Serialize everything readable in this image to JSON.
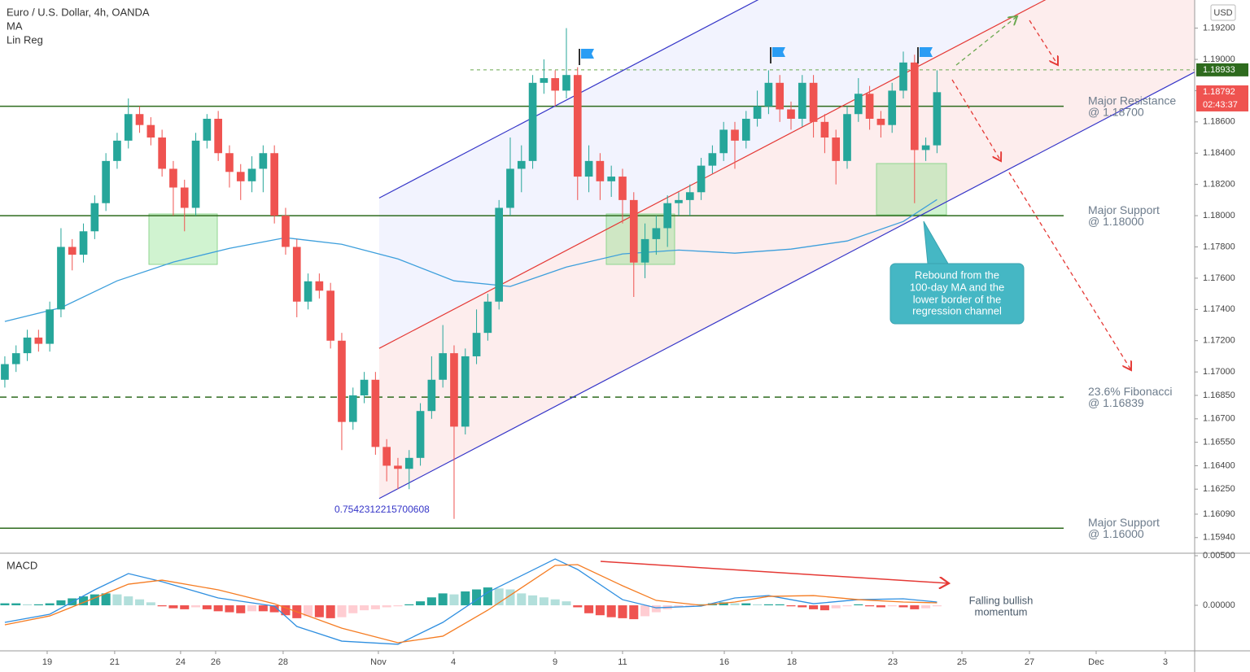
{
  "chart_data": [
    {
      "type": "candlestick",
      "title": "Euro / U.S. Dollar, 4h, OANDA",
      "currency": "USD",
      "up_color": "#26a69a",
      "down_color": "#ef5350",
      "xlim": [
        -0.43,
        105.94
      ],
      "ylim": [
        1.1584,
        1.1938
      ],
      "xticks": [
        {
          "value": 3.77,
          "label": "19"
        },
        {
          "value": 9.78,
          "label": "21"
        },
        {
          "value": 15.65,
          "label": "24"
        },
        {
          "value": 18.77,
          "label": "26"
        },
        {
          "value": 24.78,
          "label": "28"
        },
        {
          "value": 33.26,
          "label": "Nov"
        },
        {
          "value": 39.93,
          "label": "4"
        },
        {
          "value": 48.99,
          "label": "9"
        },
        {
          "value": 55.0,
          "label": "11"
        },
        {
          "value": 64.06,
          "label": "16"
        },
        {
          "value": 70.07,
          "label": "18"
        },
        {
          "value": 79.06,
          "label": "23"
        },
        {
          "value": 85.22,
          "label": "25"
        },
        {
          "value": 91.23,
          "label": "27"
        },
        {
          "value": 97.17,
          "label": "Dec"
        },
        {
          "value": 103.33,
          "label": "3"
        }
      ],
      "yticks": [
        {
          "value": 1.192,
          "label": "1.19200"
        },
        {
          "value": 1.19,
          "label": "1.19000"
        },
        {
          "value": 1.188,
          "label": "1.18800"
        },
        {
          "value": 1.186,
          "label": "1.18600"
        },
        {
          "value": 1.184,
          "label": "1.18400"
        },
        {
          "value": 1.182,
          "label": "1.18200"
        },
        {
          "value": 1.18,
          "label": "1.18000"
        },
        {
          "value": 1.178,
          "label": "1.17800"
        },
        {
          "value": 1.176,
          "label": "1.17600"
        },
        {
          "value": 1.174,
          "label": "1.17400"
        },
        {
          "value": 1.172,
          "label": "1.17200"
        },
        {
          "value": 1.17,
          "label": "1.17000"
        },
        {
          "value": 1.1685,
          "label": "1.16850"
        },
        {
          "value": 1.167,
          "label": "1.16700"
        },
        {
          "value": 1.1655,
          "label": "1.16550"
        },
        {
          "value": 1.164,
          "label": "1.16400"
        },
        {
          "value": 1.1625,
          "label": "1.16250"
        },
        {
          "value": 1.1609,
          "label": "1.16090"
        },
        {
          "value": 1.1594,
          "label": "1.15940"
        }
      ],
      "x": [
        0,
        1,
        2,
        3,
        4,
        5,
        6,
        7,
        8,
        9,
        10,
        11,
        12,
        13,
        14,
        15,
        16,
        17,
        18,
        19,
        20,
        21,
        22,
        23,
        24,
        25,
        26,
        27,
        28,
        29,
        30,
        31,
        32,
        33,
        34,
        35,
        36,
        37,
        38,
        39,
        40,
        41,
        42,
        43,
        44,
        45,
        46,
        47,
        48,
        49,
        50,
        51,
        52,
        53,
        54,
        55,
        56,
        57,
        58,
        59,
        60,
        61,
        62,
        63,
        64,
        65,
        66,
        67,
        68,
        69,
        70,
        71,
        72,
        73,
        74,
        75,
        76,
        77,
        78,
        79,
        80,
        81,
        82,
        83
      ],
      "open": [
        1.1695,
        1.1705,
        1.1712,
        1.1722,
        1.1718,
        1.174,
        1.178,
        1.1775,
        1.179,
        1.1808,
        1.1835,
        1.1848,
        1.1865,
        1.1858,
        1.185,
        1.183,
        1.1818,
        1.1805,
        1.1848,
        1.1862,
        1.184,
        1.1828,
        1.1822,
        1.183,
        1.184,
        1.18,
        1.178,
        1.1745,
        1.1758,
        1.1752,
        1.172,
        1.1668,
        1.1685,
        1.1695,
        1.1652,
        1.164,
        1.1638,
        1.1645,
        1.1675,
        1.1695,
        1.1712,
        1.1665,
        1.171,
        1.1725,
        1.1745,
        1.1805,
        1.183,
        1.1835,
        1.1885,
        1.1888,
        1.188,
        1.189,
        1.1825,
        1.1835,
        1.1822,
        1.1825,
        1.181,
        1.177,
        1.1785,
        1.1792,
        1.1808,
        1.181,
        1.1815,
        1.1832,
        1.184,
        1.1855,
        1.1848,
        1.1862,
        1.187,
        1.1885,
        1.1868,
        1.1862,
        1.1885,
        1.186,
        1.185,
        1.1835,
        1.1865,
        1.1878,
        1.1862,
        1.1858,
        1.188,
        1.1898,
        1.1842,
        1.1845
      ],
      "high": [
        1.171,
        1.1717,
        1.1727,
        1.1727,
        1.1745,
        1.1792,
        1.1785,
        1.1795,
        1.1813,
        1.184,
        1.1853,
        1.1875,
        1.187,
        1.1863,
        1.1855,
        1.1835,
        1.1823,
        1.1853,
        1.1865,
        1.1867,
        1.1845,
        1.1833,
        1.1838,
        1.1845,
        1.1845,
        1.1805,
        1.1785,
        1.1763,
        1.1763,
        1.1757,
        1.1725,
        1.169,
        1.17,
        1.17,
        1.1657,
        1.1645,
        1.165,
        1.168,
        1.171,
        1.173,
        1.1717,
        1.1715,
        1.174,
        1.175,
        1.181,
        1.185,
        1.1845,
        1.189,
        1.19,
        1.1893,
        1.192,
        1.1895,
        1.1845,
        1.184,
        1.1832,
        1.183,
        1.1815,
        1.1795,
        1.18,
        1.1813,
        1.1815,
        1.182,
        1.1837,
        1.1845,
        1.186,
        1.186,
        1.1867,
        1.188,
        1.1893,
        1.189,
        1.1873,
        1.189,
        1.189,
        1.1865,
        1.1855,
        1.187,
        1.1888,
        1.1883,
        1.1867,
        1.1885,
        1.1905,
        1.1903,
        1.185,
        1.1893
      ],
      "low": [
        1.169,
        1.17,
        1.1707,
        1.1713,
        1.1713,
        1.1735,
        1.1765,
        1.177,
        1.1785,
        1.1803,
        1.183,
        1.1843,
        1.1853,
        1.1845,
        1.1825,
        1.18,
        1.179,
        1.18,
        1.1843,
        1.1835,
        1.1818,
        1.181,
        1.1815,
        1.1815,
        1.1795,
        1.1775,
        1.1735,
        1.174,
        1.1747,
        1.1715,
        1.165,
        1.1663,
        1.168,
        1.1647,
        1.163,
        1.1625,
        1.1625,
        1.164,
        1.167,
        1.169,
        1.1606,
        1.166,
        1.1705,
        1.172,
        1.174,
        1.18,
        1.1815,
        1.183,
        1.1878,
        1.187,
        1.1875,
        1.181,
        1.1815,
        1.181,
        1.1812,
        1.1795,
        1.1748,
        1.176,
        1.1775,
        1.178,
        1.18,
        1.18,
        1.181,
        1.1827,
        1.1835,
        1.183,
        1.1843,
        1.1857,
        1.1865,
        1.186,
        1.1855,
        1.1857,
        1.185,
        1.184,
        1.182,
        1.183,
        1.186,
        1.1855,
        1.185,
        1.1853,
        1.1875,
        1.1808,
        1.1835,
        1.184
      ],
      "close": [
        1.1705,
        1.1712,
        1.1722,
        1.1718,
        1.174,
        1.178,
        1.1775,
        1.179,
        1.1808,
        1.1835,
        1.1848,
        1.1865,
        1.1858,
        1.185,
        1.183,
        1.1818,
        1.1805,
        1.1848,
        1.1862,
        1.184,
        1.1828,
        1.1822,
        1.183,
        1.184,
        1.18,
        1.178,
        1.1745,
        1.1758,
        1.1752,
        1.172,
        1.1668,
        1.1685,
        1.1695,
        1.1652,
        1.164,
        1.1638,
        1.1645,
        1.1675,
        1.1695,
        1.1712,
        1.1665,
        1.171,
        1.1725,
        1.1745,
        1.1805,
        1.183,
        1.1835,
        1.1885,
        1.1888,
        1.188,
        1.189,
        1.1825,
        1.1835,
        1.1822,
        1.1825,
        1.181,
        1.177,
        1.1785,
        1.1792,
        1.1808,
        1.181,
        1.1815,
        1.1832,
        1.184,
        1.1855,
        1.1848,
        1.1862,
        1.187,
        1.1885,
        1.1868,
        1.1862,
        1.1885,
        1.186,
        1.185,
        1.1835,
        1.1865,
        1.1878,
        1.1862,
        1.1858,
        1.188,
        1.1898,
        1.1842,
        1.1845,
        1.1879
      ],
      "ma": {
        "name": "MA",
        "color": "#3d9fdc",
        "x": [
          0,
          5,
          10,
          15,
          20,
          25,
          30,
          35,
          40,
          45,
          50,
          55,
          60,
          65,
          70,
          75,
          80,
          83
        ],
        "values": [
          1.17323,
          1.17411,
          1.17583,
          1.17703,
          1.17791,
          1.17859,
          1.17817,
          1.17723,
          1.17583,
          1.17547,
          1.17671,
          1.17755,
          1.1778,
          1.1776,
          1.17786,
          1.17838,
          1.17963,
          1.18103
        ]
      },
      "lin_reg": {
        "name": "Lin Reg",
        "x": [
          33.33,
          105.94
        ],
        "upper": [
          1.18113,
          1.20843
        ],
        "middle": [
          1.17151,
          1.19881
        ],
        "lower": [
          1.1619,
          1.18919
        ],
        "edge_color": "#3535c8",
        "middle_color": "#e53935",
        "label": "0.7542312215700608"
      },
      "levels": [
        {
          "value": 1.187,
          "style": "solid",
          "label": [
            "Major Resistance",
            "@ 1.18700"
          ]
        },
        {
          "value": 1.18,
          "style": "solid",
          "label": [
            "Major Support",
            "@ 1.18000"
          ]
        },
        {
          "value": 1.16839,
          "style": "dashed",
          "label": [
            "23.6% Fibonacci",
            "@ 1.16839"
          ]
        },
        {
          "value": 1.16,
          "style": "solid",
          "label": [
            "Major Support",
            "@ 1.16000"
          ]
        }
      ],
      "level_color": "#2e6b1e",
      "high_line": {
        "value": 1.18933,
        "label": "1.18933"
      },
      "last_price": {
        "value": 1.18792,
        "label": "1.18792"
      },
      "countdown": "02:43:37",
      "callout": [
        "Rebound from the",
        "100-day MA and the",
        "lower border of the",
        "regression channel"
      ]
    },
    {
      "type": "macd",
      "title": "MACD",
      "ylim": [
        -0.00459,
        0.00525
      ],
      "yticks": [
        {
          "value": 0.005,
          "label": "0.00500"
        },
        {
          "value": 0,
          "label": "0.00000"
        }
      ],
      "macd_color": "#2f8fe0",
      "signal_color": "#f57c22",
      "histogram_colors": [
        "#26a69a",
        "#b2dfdb",
        "#ef5350",
        "#ffcdd2"
      ],
      "line_x": [
        0,
        4,
        8,
        11,
        14,
        19,
        24,
        26,
        30,
        35,
        39,
        43,
        49,
        51,
        55,
        58,
        62,
        65,
        68,
        72,
        76,
        80,
        83
      ],
      "macd": [
        -0.00172,
        -0.0009,
        0.00156,
        0.0032,
        0.00238,
        0.00074,
        -8e-05,
        -0.00213,
        -0.00361,
        -0.00393,
        -0.00172,
        0.00131,
        0.00467,
        0.00361,
        0.00057,
        -0.00025,
        -8e-05,
        0.00074,
        0.00098,
        0.00016,
        0.00057,
        0.00066,
        0.00033
      ],
      "signal": [
        -0.00197,
        -0.00107,
        0.00074,
        0.00213,
        0.00254,
        0.00156,
        0.00016,
        -0.00066,
        -0.0023,
        -0.00377,
        -0.00311,
        -0.00049,
        0.00402,
        0.0041,
        0.00197,
        0.00049,
        0,
        0.00033,
        0.0009,
        0.00098,
        0.00057,
        0.00033,
        0.00025
      ],
      "histogram": [
        0.0002,
        0.0002,
        0.0001,
        0.0001,
        0.0002,
        0.0005,
        0.0007,
        0.0009,
        0.0011,
        0.0012,
        0.0011,
        0.0009,
        0.0006,
        0.0003,
        -0.0001,
        -0.0003,
        -0.0004,
        -0.0002,
        -0.0004,
        -0.0006,
        -0.0007,
        -0.0008,
        -0.0006,
        -0.0006,
        -0.0007,
        -0.001,
        -0.0013,
        -0.0011,
        -0.0012,
        -0.0013,
        -0.0012,
        -0.0008,
        -0.0005,
        -0.0004,
        -0.0002,
        -0.0001,
        0.0001,
        0.0004,
        0.0008,
        0.0012,
        0.0011,
        0.0014,
        0.0016,
        0.0018,
        0.0017,
        0.0016,
        0.0012,
        0.001,
        0.0008,
        0.0006,
        0.0004,
        -0.0002,
        -0.0008,
        -0.001,
        -0.0012,
        -0.0013,
        -0.0014,
        -0.0011,
        -0.0007,
        -0.0004,
        -0.0002,
        -0.0001,
        0.0001,
        0.0002,
        0.0003,
        0.0002,
        0.0002,
        0.0001,
        0.0001,
        0.0001,
        -0.0001,
        -0.0002,
        -0.0004,
        -0.0005,
        -0.0003,
        -0.0001,
        0.0001,
        -0.0001,
        -0.0002,
        -0.0001,
        -0.0002,
        -0.0004,
        -0.0003,
        -0.0001
      ],
      "annotation": [
        "Falling bullish",
        "momentum"
      ]
    }
  ]
}
